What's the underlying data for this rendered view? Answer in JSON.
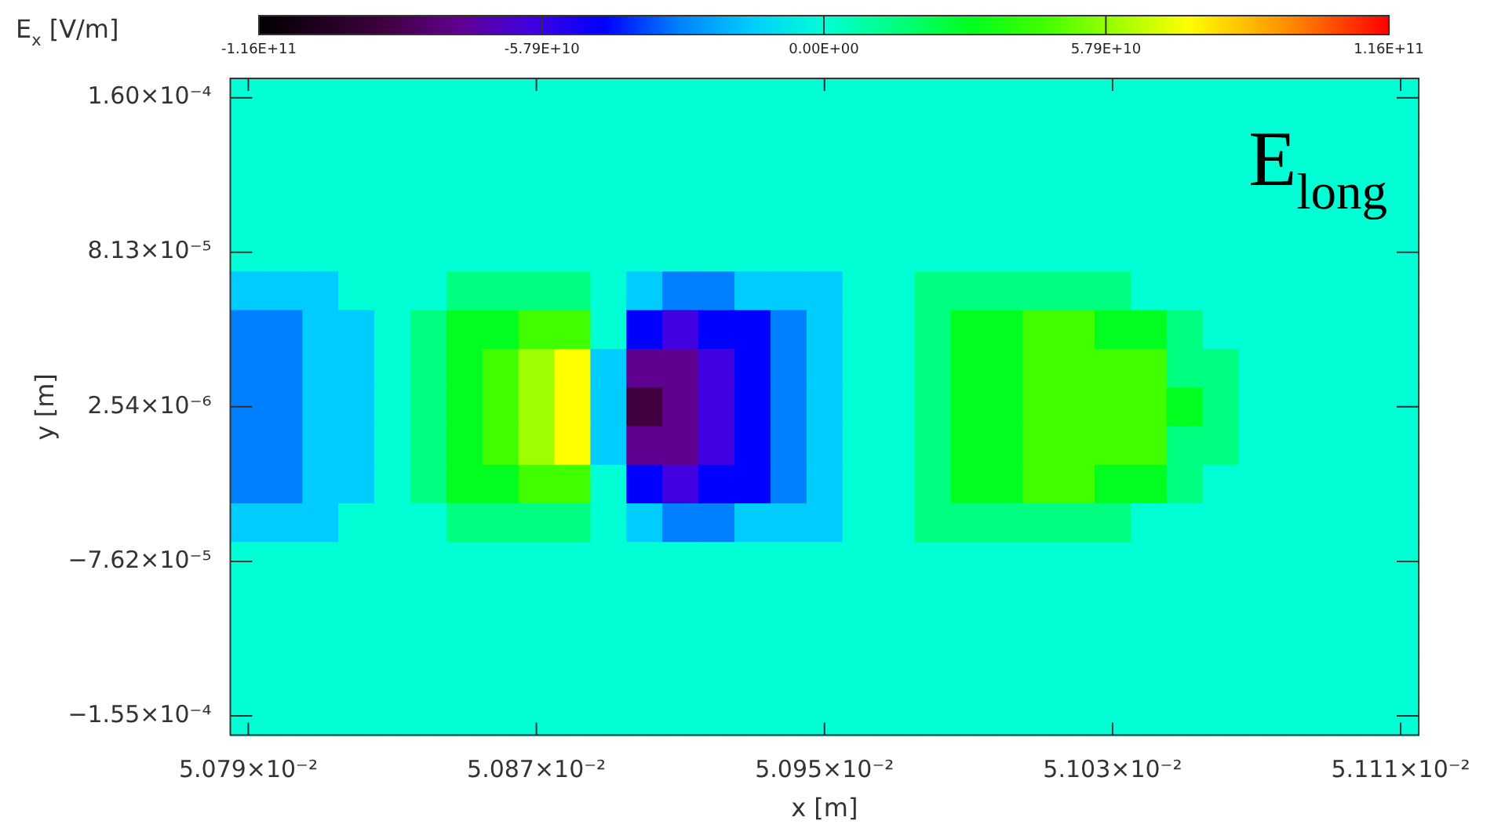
{
  "chart_data": {
    "type": "heatmap",
    "title": "E$_{long}$",
    "xlabel": "x [m]",
    "ylabel": "y [m]",
    "clabel": "E$_{x}$ [V/m]",
    "categories": [
      "5.079×10⁻²",
      null,
      null,
      null,
      null,
      null,
      null,
      null,
      "5.087×10⁻²",
      null,
      null,
      null,
      null,
      null,
      null,
      null,
      "5.095×10⁻²",
      null,
      null,
      null,
      null,
      null,
      null,
      null,
      "5.103×10⁻²",
      null,
      null,
      null,
      null,
      null,
      null,
      null,
      "5.111×10⁻²"
    ],
    "y_categories": [
      "1.60×10⁻⁴",
      null,
      null,
      null,
      "8.13×10⁻⁵",
      null,
      null,
      null,
      "2.54×10⁻⁶",
      null,
      null,
      null,
      "−7.62×10⁻⁵",
      null,
      null,
      null,
      "−1.55×10⁻⁴"
    ],
    "clim": [
      -116000000000.0,
      116000000000.0
    ],
    "cticks": [
      {
        "value": -116000000000.0,
        "label": "-1.16E+11"
      },
      {
        "value": -57900000000.0,
        "label": "-5.79E+10"
      },
      {
        "value": 0,
        "label": "0.00E+00"
      },
      {
        "value": 57900000000.0,
        "label": "5.79E+10"
      },
      {
        "value": 116000000000.0,
        "label": "1.16E+11"
      }
    ],
    "cells": [
      [
        0,
        0,
        0,
        0,
        0,
        0,
        0,
        0,
        0,
        0,
        0,
        0,
        0,
        0,
        0,
        0,
        0,
        0,
        0,
        0,
        0,
        0,
        0,
        0,
        0,
        0,
        0,
        0,
        0,
        0,
        0,
        0,
        0
      ],
      [
        0,
        0,
        0,
        0,
        0,
        0,
        0,
        0,
        0,
        0,
        0,
        0,
        0,
        0,
        0,
        0,
        0,
        0,
        0,
        0,
        0,
        0,
        0,
        0,
        0,
        0,
        0,
        0,
        0,
        0,
        0,
        0,
        0
      ],
      [
        0,
        0,
        0,
        0,
        0,
        0,
        0,
        0,
        0,
        0,
        0,
        0,
        0,
        0,
        0,
        0,
        0,
        0,
        0,
        0,
        0,
        0,
        0,
        0,
        0,
        0,
        0,
        0,
        0,
        0,
        0,
        0,
        0
      ],
      [
        0,
        0,
        0,
        0,
        0,
        0,
        0,
        0,
        0,
        0,
        0,
        0,
        0,
        0,
        0,
        0,
        0,
        0,
        0,
        0,
        0,
        0,
        0,
        0,
        0,
        0,
        0,
        0,
        0,
        0,
        0,
        0,
        0
      ],
      [
        0,
        0,
        0,
        0,
        0,
        0,
        0,
        0,
        0,
        0,
        0,
        0,
        0,
        0,
        0,
        0,
        0,
        0,
        0,
        0,
        0,
        0,
        0,
        0,
        0,
        0,
        0,
        0,
        0,
        0,
        0,
        0,
        0
      ],
      [
        -15000000000.0,
        -15000000000.0,
        -15000000000.0,
        0,
        0,
        0,
        15000000000.0,
        15000000000.0,
        15000000000.0,
        15000000000.0,
        0,
        -15000000000.0,
        -30000000000.0,
        -30000000000.0,
        -15000000000.0,
        -15000000000.0,
        -15000000000.0,
        0,
        0,
        15000000000.0,
        15000000000.0,
        15000000000.0,
        15000000000.0,
        15000000000.0,
        15000000000.0,
        0,
        0,
        0,
        0,
        0,
        0,
        0,
        0
      ],
      [
        -30000000000.0,
        -30000000000.0,
        -15000000000.0,
        -15000000000.0,
        0,
        15000000000.0,
        30000000000.0,
        30000000000.0,
        45000000000.0,
        45000000000.0,
        0,
        -45000000000.0,
        -60000000000.0,
        -45000000000.0,
        -45000000000.0,
        -30000000000.0,
        -15000000000.0,
        0,
        0,
        15000000000.0,
        30000000000.0,
        30000000000.0,
        45000000000.0,
        45000000000.0,
        30000000000.0,
        30000000000.0,
        15000000000.0,
        0,
        0,
        0,
        0,
        0,
        0
      ],
      [
        -30000000000.0,
        -30000000000.0,
        -15000000000.0,
        -15000000000.0,
        0,
        15000000000.0,
        30000000000.0,
        45000000000.0,
        60000000000.0,
        75000000000.0,
        -15000000000.0,
        -75000000000.0,
        -75000000000.0,
        -60000000000.0,
        -45000000000.0,
        -30000000000.0,
        -15000000000.0,
        0,
        0,
        15000000000.0,
        30000000000.0,
        30000000000.0,
        45000000000.0,
        45000000000.0,
        45000000000.0,
        45000000000.0,
        15000000000.0,
        15000000000.0,
        0,
        0,
        0,
        0,
        0
      ],
      [
        -30000000000.0,
        -30000000000.0,
        -15000000000.0,
        -15000000000.0,
        0,
        15000000000.0,
        30000000000.0,
        45000000000.0,
        60000000000.0,
        75000000000.0,
        -15000000000.0,
        -90000000000.0,
        -75000000000.0,
        -60000000000.0,
        -45000000000.0,
        -30000000000.0,
        -15000000000.0,
        0,
        0,
        15000000000.0,
        30000000000.0,
        30000000000.0,
        45000000000.0,
        45000000000.0,
        45000000000.0,
        45000000000.0,
        30000000000.0,
        15000000000.0,
        0,
        0,
        0,
        0,
        0
      ],
      [
        -30000000000.0,
        -30000000000.0,
        -15000000000.0,
        -15000000000.0,
        0,
        15000000000.0,
        30000000000.0,
        45000000000.0,
        60000000000.0,
        75000000000.0,
        -15000000000.0,
        -75000000000.0,
        -75000000000.0,
        -60000000000.0,
        -45000000000.0,
        -30000000000.0,
        -15000000000.0,
        0,
        0,
        15000000000.0,
        30000000000.0,
        30000000000.0,
        45000000000.0,
        45000000000.0,
        45000000000.0,
        45000000000.0,
        15000000000.0,
        15000000000.0,
        0,
        0,
        0,
        0,
        0
      ],
      [
        -30000000000.0,
        -30000000000.0,
        -15000000000.0,
        -15000000000.0,
        0,
        15000000000.0,
        30000000000.0,
        30000000000.0,
        45000000000.0,
        45000000000.0,
        0,
        -45000000000.0,
        -60000000000.0,
        -45000000000.0,
        -45000000000.0,
        -30000000000.0,
        -15000000000.0,
        0,
        0,
        15000000000.0,
        30000000000.0,
        30000000000.0,
        45000000000.0,
        45000000000.0,
        30000000000.0,
        30000000000.0,
        15000000000.0,
        0,
        0,
        0,
        0,
        0,
        0
      ],
      [
        -15000000000.0,
        -15000000000.0,
        -15000000000.0,
        0,
        0,
        0,
        15000000000.0,
        15000000000.0,
        15000000000.0,
        15000000000.0,
        0,
        -15000000000.0,
        -30000000000.0,
        -30000000000.0,
        -15000000000.0,
        -15000000000.0,
        -15000000000.0,
        0,
        0,
        15000000000.0,
        15000000000.0,
        15000000000.0,
        15000000000.0,
        15000000000.0,
        15000000000.0,
        0,
        0,
        0,
        0,
        0,
        0,
        0,
        0
      ],
      [
        0,
        0,
        0,
        0,
        0,
        0,
        0,
        0,
        0,
        0,
        0,
        0,
        0,
        0,
        0,
        0,
        0,
        0,
        0,
        0,
        0,
        0,
        0,
        0,
        0,
        0,
        0,
        0,
        0,
        0,
        0,
        0,
        0
      ],
      [
        0,
        0,
        0,
        0,
        0,
        0,
        0,
        0,
        0,
        0,
        0,
        0,
        0,
        0,
        0,
        0,
        0,
        0,
        0,
        0,
        0,
        0,
        0,
        0,
        0,
        0,
        0,
        0,
        0,
        0,
        0,
        0,
        0
      ],
      [
        0,
        0,
        0,
        0,
        0,
        0,
        0,
        0,
        0,
        0,
        0,
        0,
        0,
        0,
        0,
        0,
        0,
        0,
        0,
        0,
        0,
        0,
        0,
        0,
        0,
        0,
        0,
        0,
        0,
        0,
        0,
        0,
        0
      ],
      [
        0,
        0,
        0,
        0,
        0,
        0,
        0,
        0,
        0,
        0,
        0,
        0,
        0,
        0,
        0,
        0,
        0,
        0,
        0,
        0,
        0,
        0,
        0,
        0,
        0,
        0,
        0,
        0,
        0,
        0,
        0,
        0,
        0
      ],
      [
        0,
        0,
        0,
        0,
        0,
        0,
        0,
        0,
        0,
        0,
        0,
        0,
        0,
        0,
        0,
        0,
        0,
        0,
        0,
        0,
        0,
        0,
        0,
        0,
        0,
        0,
        0,
        0,
        0,
        0,
        0,
        0,
        0
      ]
    ]
  }
}
